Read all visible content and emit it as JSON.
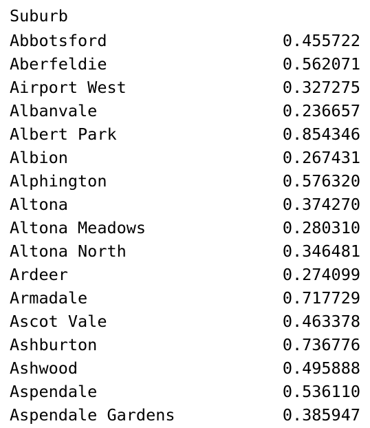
{
  "index_name": "Suburb",
  "rows": [
    {
      "suburb": "Abbotsford",
      "value": "0.455722"
    },
    {
      "suburb": "Aberfeldie",
      "value": "0.562071"
    },
    {
      "suburb": "Airport West",
      "value": "0.327275"
    },
    {
      "suburb": "Albanvale",
      "value": "0.236657"
    },
    {
      "suburb": "Albert Park",
      "value": "0.854346"
    },
    {
      "suburb": "Albion",
      "value": "0.267431"
    },
    {
      "suburb": "Alphington",
      "value": "0.576320"
    },
    {
      "suburb": "Altona",
      "value": "0.374270"
    },
    {
      "suburb": "Altona Meadows",
      "value": "0.280310"
    },
    {
      "suburb": "Altona North",
      "value": "0.346481"
    },
    {
      "suburb": "Ardeer",
      "value": "0.274099"
    },
    {
      "suburb": "Armadale",
      "value": "0.717729"
    },
    {
      "suburb": "Ascot Vale",
      "value": "0.463378"
    },
    {
      "suburb": "Ashburton",
      "value": "0.736776"
    },
    {
      "suburb": "Ashwood",
      "value": "0.495888"
    },
    {
      "suburb": "Aspendale",
      "value": "0.536110"
    },
    {
      "suburb": "Aspendale Gardens",
      "value": "0.385947"
    }
  ]
}
